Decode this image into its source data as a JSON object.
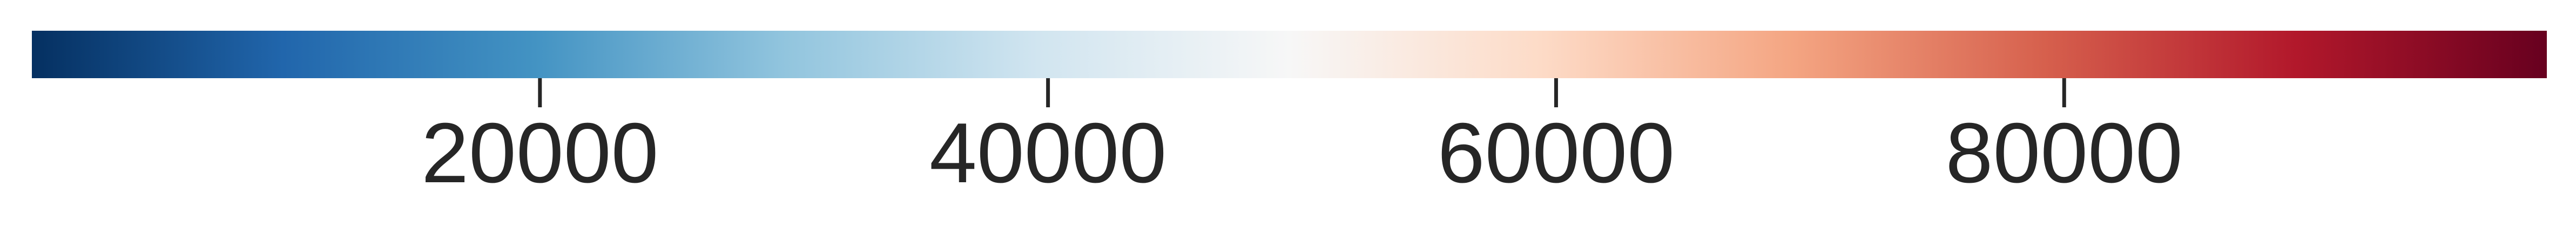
{
  "chart_data": {
    "type": "heatmap",
    "component": "colorbar",
    "orientation": "horizontal",
    "colormap": "RdBu_r",
    "range": [
      0,
      99000
    ],
    "ticks": [
      20000,
      40000,
      60000,
      80000
    ],
    "tick_labels": [
      "20000",
      "40000",
      "60000",
      "80000"
    ],
    "color_stops": [
      {
        "offset": 0.0,
        "color": "#053061"
      },
      {
        "offset": 0.1,
        "color": "#2166ac"
      },
      {
        "offset": 0.2,
        "color": "#4393c3"
      },
      {
        "offset": 0.3,
        "color": "#92c5de"
      },
      {
        "offset": 0.4,
        "color": "#d1e5f0"
      },
      {
        "offset": 0.5,
        "color": "#f7f7f7"
      },
      {
        "offset": 0.6,
        "color": "#fddbc7"
      },
      {
        "offset": 0.7,
        "color": "#f4a582"
      },
      {
        "offset": 0.8,
        "color": "#d6604d"
      },
      {
        "offset": 0.9,
        "color": "#b2182b"
      },
      {
        "offset": 1.0,
        "color": "#67001f"
      }
    ],
    "tick_color": "#262626",
    "label_color": "#262626"
  }
}
